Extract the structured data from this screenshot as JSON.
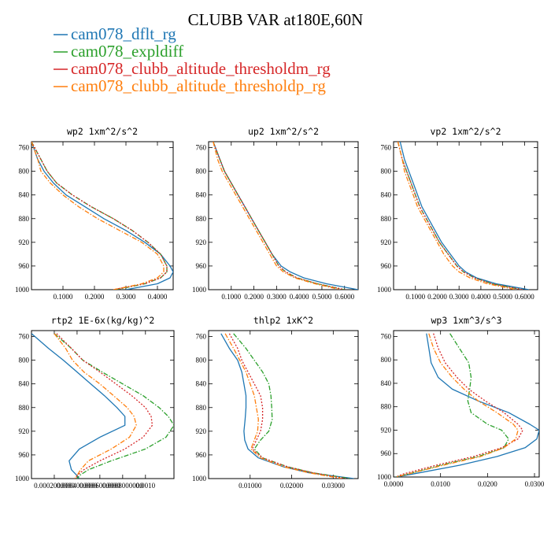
{
  "figure_title": "CLUBB VAR at180E,60N",
  "colors": {
    "cam078_dflt_rg": "#1f77b4",
    "cam078_expldiff": "#2ca02c",
    "cam078_clubb_altitude_thresholdm_rg": "#d62728",
    "cam078_clubb_altitude_thresholdp_rg": "#ff7f0e"
  },
  "legend": [
    {
      "name": "cam078_dflt_rg",
      "color": "#1f77b4",
      "dash": "solid"
    },
    {
      "name": "cam078_expldiff",
      "color": "#2ca02c",
      "dash": "dashdot"
    },
    {
      "name": "cam078_clubb_altitude_thresholdm_rg",
      "color": "#d62728",
      "dash": "dotted"
    },
    {
      "name": "cam078_clubb_altitude_thresholdp_rg",
      "color": "#ff7f0e",
      "dash": "dashdot"
    }
  ],
  "chart_data": [
    {
      "type": "line",
      "title": "wp2 1xm^2/s^2",
      "xlim": [
        0,
        0.45
      ],
      "ylim": [
        750,
        1000
      ],
      "y_inverted": true,
      "xticks": [
        "0.1000",
        "0.2000",
        "0.3000",
        "0.4000"
      ],
      "xtick_values": [
        0.1,
        0.2,
        0.3,
        0.4
      ],
      "yticks": [
        "760",
        "800",
        "840",
        "880",
        "920",
        "960",
        "1000"
      ],
      "ytick_values": [
        760,
        800,
        840,
        880,
        920,
        960,
        1000
      ],
      "y": [
        750,
        780,
        800,
        820,
        840,
        860,
        880,
        900,
        920,
        940,
        960,
        970,
        980,
        990,
        1000
      ],
      "series": [
        {
          "name": "cam078_dflt_rg",
          "values": [
            0.0,
            0.02,
            0.04,
            0.07,
            0.11,
            0.17,
            0.23,
            0.3,
            0.36,
            0.41,
            0.44,
            0.45,
            0.44,
            0.4,
            0.3
          ]
        },
        {
          "name": "cam078_expldiff",
          "values": [
            0.0,
            0.03,
            0.05,
            0.08,
            0.13,
            0.19,
            0.26,
            0.32,
            0.37,
            0.41,
            0.43,
            0.43,
            0.41,
            0.36,
            0.27
          ]
        },
        {
          "name": "cam078_clubb_altitude_thresholdm_rg",
          "values": [
            0.0,
            0.03,
            0.05,
            0.08,
            0.13,
            0.19,
            0.26,
            0.32,
            0.37,
            0.41,
            0.43,
            0.43,
            0.41,
            0.36,
            0.26
          ]
        },
        {
          "name": "cam078_clubb_altitude_thresholdp_rg",
          "values": [
            0.0,
            0.02,
            0.03,
            0.06,
            0.1,
            0.15,
            0.21,
            0.28,
            0.35,
            0.4,
            0.42,
            0.42,
            0.4,
            0.35,
            0.26
          ]
        }
      ]
    },
    {
      "type": "line",
      "title": "up2 1xm^2/s^2",
      "xlim": [
        0,
        0.66
      ],
      "ylim": [
        750,
        1000
      ],
      "y_inverted": true,
      "xticks": [
        "0.1000",
        "0.2000",
        "0.3000",
        "0.4000",
        "0.5000",
        "0.6000"
      ],
      "xtick_values": [
        0.1,
        0.2,
        0.3,
        0.4,
        0.5,
        0.6
      ],
      "yticks": [
        "760",
        "800",
        "840",
        "880",
        "920",
        "960",
        "1000"
      ],
      "ytick_values": [
        760,
        800,
        840,
        880,
        920,
        960,
        1000
      ],
      "y": [
        750,
        780,
        800,
        820,
        840,
        860,
        880,
        900,
        920,
        940,
        960,
        970,
        980,
        990,
        1000
      ],
      "series": [
        {
          "name": "cam078_dflt_rg",
          "values": [
            0.02,
            0.05,
            0.07,
            0.1,
            0.13,
            0.16,
            0.19,
            0.22,
            0.25,
            0.28,
            0.32,
            0.36,
            0.42,
            0.52,
            0.66
          ]
        },
        {
          "name": "cam078_expldiff",
          "values": [
            0.02,
            0.05,
            0.07,
            0.1,
            0.13,
            0.16,
            0.19,
            0.22,
            0.25,
            0.28,
            0.31,
            0.34,
            0.39,
            0.48,
            0.6
          ]
        },
        {
          "name": "cam078_clubb_altitude_thresholdm_rg",
          "values": [
            0.02,
            0.05,
            0.07,
            0.1,
            0.13,
            0.16,
            0.19,
            0.22,
            0.25,
            0.28,
            0.31,
            0.34,
            0.39,
            0.48,
            0.6
          ]
        },
        {
          "name": "cam078_clubb_altitude_thresholdp_rg",
          "values": [
            0.02,
            0.04,
            0.06,
            0.09,
            0.12,
            0.15,
            0.18,
            0.21,
            0.24,
            0.27,
            0.3,
            0.33,
            0.38,
            0.47,
            0.58
          ]
        }
      ]
    },
    {
      "type": "line",
      "title": "vp2 1xm^2/s^2",
      "xlim": [
        0,
        0.66
      ],
      "ylim": [
        750,
        1000
      ],
      "y_inverted": true,
      "xticks": [
        "0.1000",
        "0.2000",
        "0.3000",
        "0.4000",
        "0.5000",
        "0.6000"
      ],
      "xtick_values": [
        0.1,
        0.2,
        0.3,
        0.4,
        0.5,
        0.6
      ],
      "yticks": [
        "760",
        "800",
        "840",
        "880",
        "920",
        "960",
        "1000"
      ],
      "ytick_values": [
        760,
        800,
        840,
        880,
        920,
        960,
        1000
      ],
      "y": [
        750,
        780,
        800,
        820,
        840,
        860,
        880,
        900,
        920,
        940,
        960,
        970,
        980,
        990,
        1000
      ],
      "series": [
        {
          "name": "cam078_dflt_rg",
          "values": [
            0.03,
            0.05,
            0.07,
            0.09,
            0.11,
            0.13,
            0.16,
            0.19,
            0.22,
            0.26,
            0.3,
            0.33,
            0.38,
            0.47,
            0.62
          ]
        },
        {
          "name": "cam078_expldiff",
          "values": [
            0.02,
            0.04,
            0.06,
            0.08,
            0.1,
            0.12,
            0.15,
            0.18,
            0.21,
            0.25,
            0.29,
            0.32,
            0.37,
            0.45,
            0.59
          ]
        },
        {
          "name": "cam078_clubb_altitude_thresholdm_rg",
          "values": [
            0.02,
            0.04,
            0.06,
            0.08,
            0.1,
            0.12,
            0.15,
            0.18,
            0.21,
            0.25,
            0.29,
            0.32,
            0.37,
            0.45,
            0.59
          ]
        },
        {
          "name": "cam078_clubb_altitude_thresholdp_rg",
          "values": [
            0.02,
            0.04,
            0.05,
            0.07,
            0.09,
            0.11,
            0.14,
            0.17,
            0.2,
            0.23,
            0.27,
            0.3,
            0.35,
            0.43,
            0.56
          ]
        }
      ]
    },
    {
      "type": "line",
      "title": "rtp2 1E-6x(kg/kg)^2",
      "xlim": [
        0,
        0.00125
      ],
      "ylim": [
        750,
        1000
      ],
      "y_inverted": true,
      "xticks": [
        "0.0002000000",
        "0.0004000000",
        "0.0006000000",
        "0.0008000000",
        "0.0010"
      ],
      "xtick_values": [
        0.0002,
        0.0004,
        0.0006,
        0.0008,
        0.001
      ],
      "yticks": [
        "760",
        "800",
        "840",
        "880",
        "920",
        "960",
        "1000"
      ],
      "ytick_values": [
        760,
        800,
        840,
        880,
        920,
        960,
        1000
      ],
      "y": [
        755,
        780,
        800,
        820,
        840,
        860,
        880,
        895,
        910,
        930,
        950,
        970,
        985,
        995,
        1000
      ],
      "series": [
        {
          "name": "cam078_dflt_rg",
          "values": [
            0.0,
            0.00015,
            0.00028,
            0.0004,
            0.00052,
            0.00064,
            0.00075,
            0.00082,
            0.00082,
            0.0006,
            0.00042,
            0.00033,
            0.00035,
            0.0004,
            0.00042
          ]
        },
        {
          "name": "cam078_expldiff",
          "values": [
            0.0002,
            0.00035,
            0.00045,
            0.00062,
            0.0008,
            0.00098,
            0.00112,
            0.0012,
            0.00125,
            0.00118,
            0.001,
            0.0007,
            0.0005,
            0.00042,
            0.0004
          ]
        },
        {
          "name": "cam078_clubb_altitude_thresholdm_rg",
          "values": [
            0.00022,
            0.00035,
            0.00045,
            0.0006,
            0.00074,
            0.00088,
            0.001,
            0.00105,
            0.00106,
            0.00098,
            0.00082,
            0.0006,
            0.00046,
            0.0004,
            0.00038
          ]
        },
        {
          "name": "cam078_clubb_altitude_thresholdp_rg",
          "values": [
            0.0002,
            0.0003,
            0.00036,
            0.00046,
            0.0006,
            0.00072,
            0.00084,
            0.0009,
            0.00092,
            0.00086,
            0.0007,
            0.0005,
            0.00043,
            0.0004,
            0.00038
          ]
        }
      ]
    },
    {
      "type": "line",
      "title": "thlp2 1xK^2",
      "xlim": [
        0,
        0.036
      ],
      "ylim": [
        750,
        1000
      ],
      "y_inverted": true,
      "xticks": [
        "0.01000",
        "0.02000",
        "0.03000"
      ],
      "xtick_values": [
        0.01,
        0.02,
        0.03
      ],
      "yticks": [
        "760",
        "800",
        "840",
        "880",
        "920",
        "960",
        "1000"
      ],
      "ytick_values": [
        760,
        800,
        840,
        880,
        920,
        960,
        1000
      ],
      "y": [
        755,
        780,
        800,
        820,
        840,
        860,
        880,
        900,
        920,
        935,
        950,
        965,
        980,
        990,
        1000
      ],
      "series": [
        {
          "name": "cam078_dflt_rg",
          "values": [
            0.003,
            0.005,
            0.007,
            0.008,
            0.0085,
            0.009,
            0.009,
            0.0088,
            0.0085,
            0.0087,
            0.0095,
            0.012,
            0.018,
            0.024,
            0.035
          ]
        },
        {
          "name": "cam078_expldiff",
          "values": [
            0.006,
            0.009,
            0.011,
            0.013,
            0.0145,
            0.015,
            0.0152,
            0.0153,
            0.0145,
            0.0125,
            0.011,
            0.013,
            0.019,
            0.025,
            0.034
          ]
        },
        {
          "name": "cam078_clubb_altitude_thresholdm_rg",
          "values": [
            0.005,
            0.007,
            0.008,
            0.0095,
            0.011,
            0.0125,
            0.013,
            0.013,
            0.0125,
            0.0115,
            0.0105,
            0.013,
            0.019,
            0.025,
            0.033
          ]
        },
        {
          "name": "cam078_clubb_altitude_thresholdp_rg",
          "values": [
            0.004,
            0.006,
            0.0075,
            0.009,
            0.01,
            0.011,
            0.0115,
            0.012,
            0.0118,
            0.011,
            0.0102,
            0.0125,
            0.018,
            0.024,
            0.032
          ]
        }
      ]
    },
    {
      "type": "line",
      "title": "wp3 1xm^3/s^3",
      "xlim": [
        0,
        0.031
      ],
      "ylim": [
        750,
        1000
      ],
      "y_inverted": true,
      "xticks": [
        "0.0000",
        "0.0100",
        "0.0200",
        "0.0300"
      ],
      "xtick_values": [
        0.0,
        0.01,
        0.02,
        0.03
      ],
      "yticks": [
        "760",
        "800",
        "840",
        "880",
        "920",
        "960",
        "1000"
      ],
      "ytick_values": [
        760,
        800,
        840,
        880,
        920,
        960,
        1000
      ],
      "y": [
        755,
        780,
        805,
        830,
        850,
        870,
        890,
        910,
        920,
        935,
        950,
        965,
        980,
        995,
        1000
      ],
      "series": [
        {
          "name": "cam078_dflt_rg",
          "values": [
            0.007,
            0.0075,
            0.008,
            0.0095,
            0.0125,
            0.018,
            0.0245,
            0.029,
            0.031,
            0.0305,
            0.028,
            0.022,
            0.014,
            0.004,
            0.0005
          ]
        },
        {
          "name": "cam078_expldiff",
          "values": [
            0.012,
            0.014,
            0.016,
            0.0165,
            0.0162,
            0.0158,
            0.0165,
            0.02,
            0.023,
            0.0245,
            0.0235,
            0.018,
            0.01,
            0.003,
            0.0005
          ]
        },
        {
          "name": "cam078_clubb_altitude_thresholdm_rg",
          "values": [
            0.0085,
            0.0095,
            0.011,
            0.0135,
            0.016,
            0.0195,
            0.0235,
            0.0265,
            0.0275,
            0.0265,
            0.023,
            0.017,
            0.009,
            0.002,
            0.0005
          ]
        },
        {
          "name": "cam078_clubb_altitude_thresholdp_rg",
          "values": [
            0.0075,
            0.0085,
            0.01,
            0.0125,
            0.015,
            0.018,
            0.022,
            0.0255,
            0.0265,
            0.026,
            0.0235,
            0.0185,
            0.0105,
            0.003,
            0.0005
          ]
        }
      ]
    }
  ]
}
